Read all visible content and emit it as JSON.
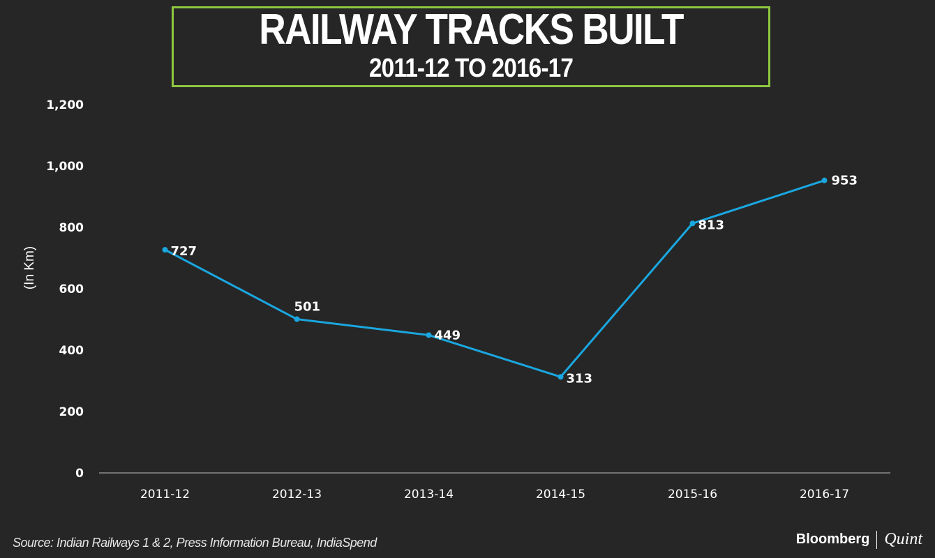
{
  "chart_data": {
    "type": "line",
    "title": "RAILWAY TRACKS BUILT",
    "subtitle": "2011-12 TO 2016-17",
    "categories": [
      "2011-12",
      "2012-13",
      "2013-14",
      "2014-15",
      "2015-16",
      "2016-17"
    ],
    "series": [
      {
        "name": "Railway tracks built",
        "values": [
          727,
          501,
          449,
          313,
          813,
          953
        ]
      }
    ],
    "data_labels": [
      "727",
      "501",
      "449",
      "313",
      "813",
      "953"
    ],
    "yticks": [
      0,
      200,
      400,
      600,
      800,
      1000,
      1200
    ],
    "ytick_labels": [
      "0",
      "200",
      "400",
      "600",
      "800",
      "1,000",
      "1,200"
    ],
    "ylim": [
      0,
      1200
    ],
    "xlabel": "",
    "ylabel": "(In Km)",
    "grid": false,
    "legend": "none"
  },
  "colors": {
    "background": "#262626",
    "line": "#1aa7e0",
    "title_border": "#8dc63f",
    "text": "#ffffff",
    "axis": "#bfbfbf"
  },
  "footer": {
    "source": "Source: Indian Railways 1 & 2, Press Information Bureau, IndiaSpend",
    "brand_primary": "Bloomberg",
    "brand_secondary": "Quint"
  }
}
